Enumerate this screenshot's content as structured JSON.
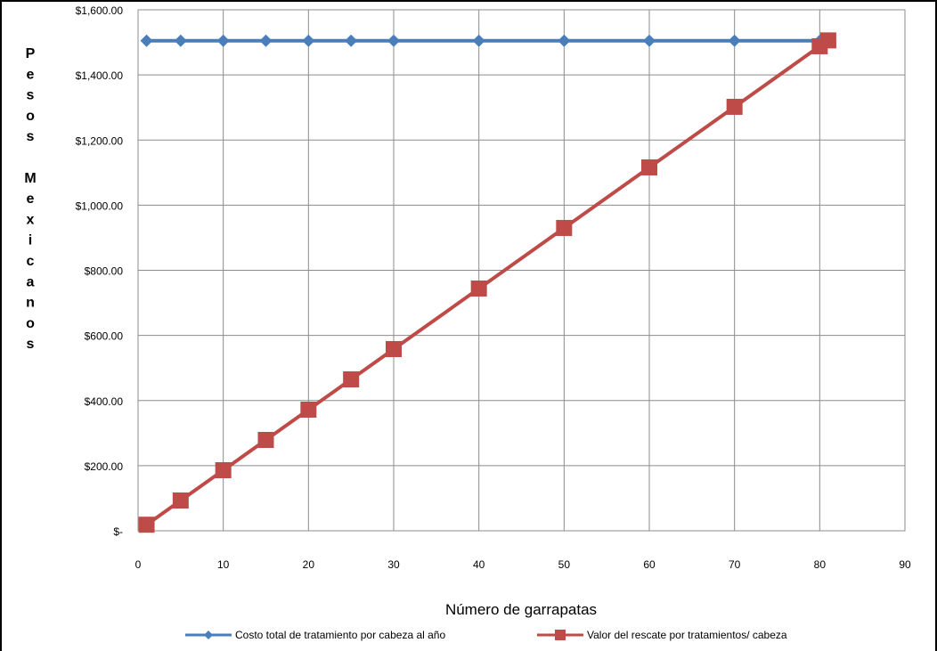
{
  "chart_data": {
    "type": "line",
    "xlabel": "Número de garrapatas",
    "ylabel": "Pesos Mexicanos",
    "xlim": [
      0,
      90
    ],
    "ylim": [
      0,
      1600
    ],
    "x_ticks": [
      "0",
      "10",
      "20",
      "30",
      "40",
      "50",
      "60",
      "70",
      "80",
      "90"
    ],
    "y_ticks": [
      "$-",
      "$200.00",
      "$400.00",
      "$600.00",
      "$800.00",
      "$1,000.00",
      "$1,200.00",
      "$1,400.00",
      "$1,600.00"
    ],
    "grid": true,
    "legend_position": "bottom",
    "series": [
      {
        "name": "Costo total de tratamiento por cabeza al año",
        "color": "#4a7ebb",
        "marker": "diamond",
        "x": [
          1,
          5,
          10,
          15,
          20,
          25,
          30,
          40,
          50,
          60,
          70,
          80
        ],
        "y": [
          1505,
          1505,
          1505,
          1505,
          1505,
          1505,
          1505,
          1505,
          1505,
          1505,
          1505,
          1505
        ]
      },
      {
        "name": "Valor del rescate por tratamientos/ cabeza",
        "color": "#be4b48",
        "marker": "square",
        "x": [
          1,
          5,
          10,
          15,
          20,
          25,
          30,
          40,
          50,
          60,
          70,
          80,
          81
        ],
        "y": [
          18.6,
          93,
          186,
          279,
          372,
          465,
          558,
          744,
          930,
          1116,
          1302,
          1488,
          1506
        ]
      }
    ]
  }
}
